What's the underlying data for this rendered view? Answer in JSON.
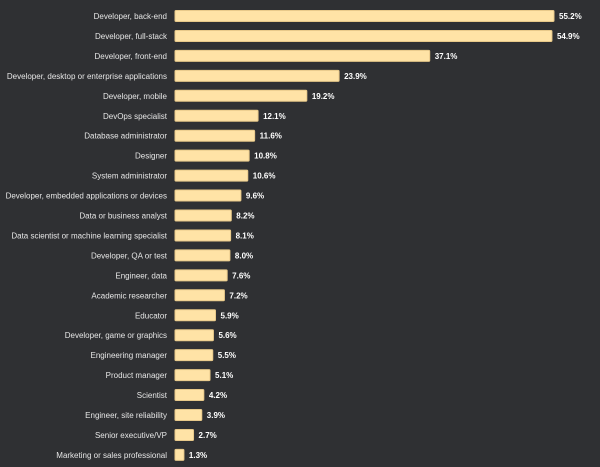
{
  "chart_data": {
    "type": "bar",
    "orientation": "horizontal",
    "value_suffix": "%",
    "xlim": [
      0,
      55.2
    ],
    "grid": false,
    "colors": {
      "background": "#2f3033",
      "bar_fill": "#ffe3a6",
      "bar_stroke": "#e8c98a",
      "label_text": "#e6e6e6",
      "value_text": "#ffffff"
    },
    "categories": [
      "Developer, back-end",
      "Developer, full-stack",
      "Developer, front-end",
      "Developer, desktop or enterprise applications",
      "Developer, mobile",
      "DevOps specialist",
      "Database administrator",
      "Designer",
      "System administrator",
      "Developer, embedded applications or devices",
      "Data or business analyst",
      "Data scientist or machine learning specialist",
      "Developer, QA or test",
      "Engineer, data",
      "Academic researcher",
      "Educator",
      "Developer, game or graphics",
      "Engineering manager",
      "Product manager",
      "Scientist",
      "Engineer, site reliability",
      "Senior executive/VP",
      "Marketing or sales professional"
    ],
    "values": [
      55.2,
      54.9,
      37.1,
      23.9,
      19.2,
      12.1,
      11.6,
      10.8,
      10.6,
      9.6,
      8.2,
      8.1,
      8.0,
      7.6,
      7.2,
      5.9,
      5.6,
      5.5,
      5.1,
      4.2,
      3.9,
      2.7,
      1.3
    ],
    "value_labels": [
      "55.2%",
      "54.9%",
      "37.1%",
      "23.9%",
      "19.2%",
      "12.1%",
      "11.6%",
      "10.8%",
      "10.6%",
      "9.6%",
      "8.2%",
      "8.1%",
      "8.0%",
      "7.6%",
      "7.2%",
      "5.9%",
      "5.6%",
      "5.5%",
      "5.1%",
      "4.2%",
      "3.9%",
      "2.7%",
      "1.3%"
    ]
  }
}
